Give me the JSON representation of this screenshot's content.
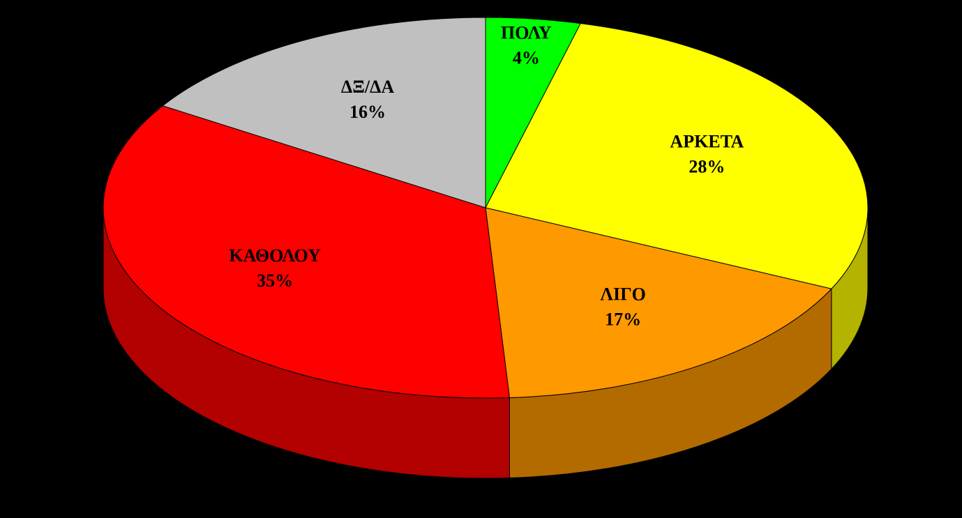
{
  "chart_data": {
    "type": "pie",
    "categories": [
      "ΠΟΛΥ",
      "ΑΡΚΕΤΑ",
      "ΛΙΓΟ",
      "ΚΑΘΟΛΟΥ",
      "ΔΞ/ΔΑ"
    ],
    "values": [
      4,
      28,
      17,
      35,
      16
    ],
    "value_labels": [
      "4%",
      "28%",
      "17%",
      "35%",
      "16%"
    ],
    "colors": [
      "#00ff00",
      "#ffff00",
      "#ff9900",
      "#ff0000",
      "#c0c0c0"
    ]
  }
}
